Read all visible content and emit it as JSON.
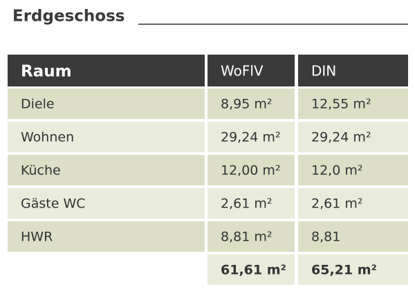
{
  "header": {
    "title": "Erdgeschoss"
  },
  "table": {
    "columns": [
      "Raum",
      "WoFlV",
      "DIN"
    ],
    "rows": [
      [
        "Diele",
        "8,95 m²",
        "12,55 m²"
      ],
      [
        "Wohnen",
        "29,24 m²",
        "29,24 m²"
      ],
      [
        "Küche",
        "12,00 m²",
        "12,0 m²"
      ],
      [
        "Gäste WC",
        "2,61 m²",
        "2,61 m²"
      ],
      [
        "HWR",
        "8,81 m²",
        "8,81"
      ]
    ],
    "totals": [
      "61,61 m²",
      "65,21 m²"
    ]
  }
}
